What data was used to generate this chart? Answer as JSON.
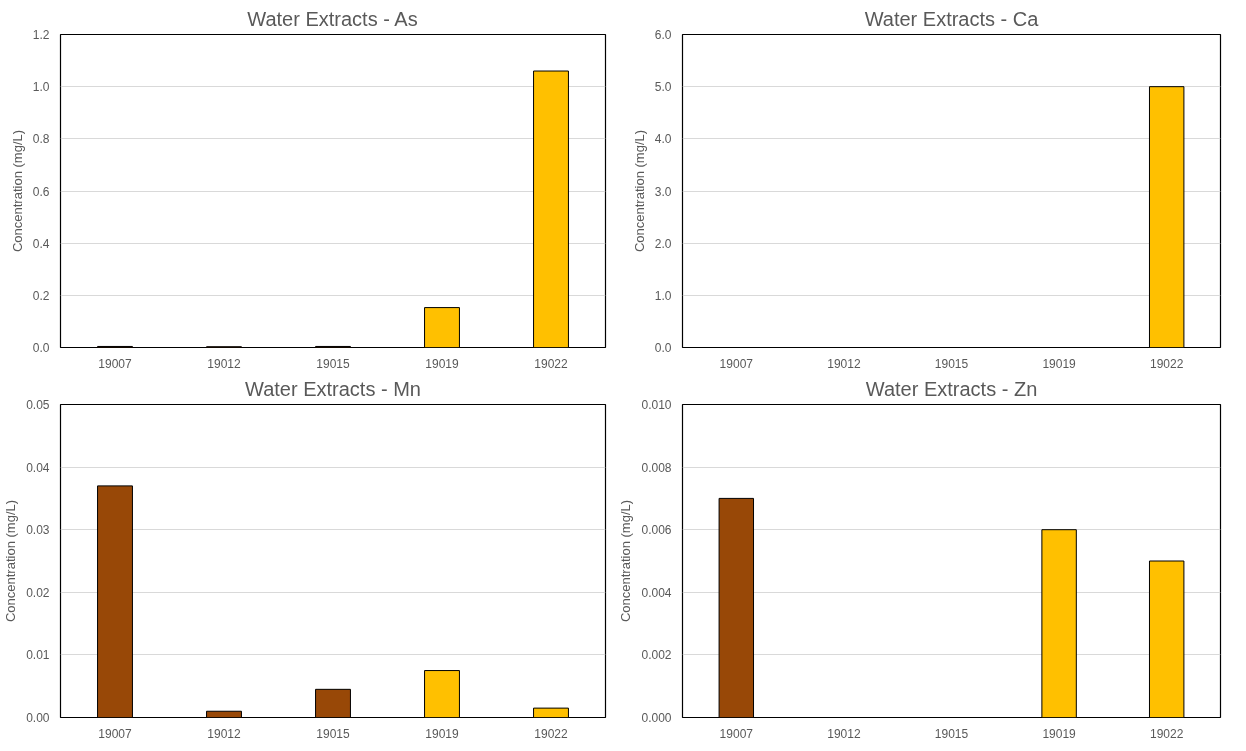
{
  "chart_data": [
    {
      "type": "bar",
      "title": "Water Extracts - As",
      "ylabel": "Concentration (mg/L)",
      "categories": [
        "19007",
        "19012",
        "19015",
        "19019",
        "19022"
      ],
      "values": [
        0.004,
        0.003,
        0.004,
        0.153,
        1.06
      ],
      "colors": [
        "#984807",
        "#984807",
        "#984807",
        "#ffc000",
        "#ffc000"
      ],
      "ylim": [
        0,
        1.2
      ],
      "yticks": [
        {
          "value": 0,
          "label": "0.0"
        },
        0.2,
        0.4,
        0.6,
        0.8,
        {
          "value": 1,
          "label": "1.0"
        },
        1.2
      ],
      "grid": "y"
    },
    {
      "type": "bar",
      "title": "Water Extracts - Ca",
      "ylabel": "Concentration (mg/L)",
      "categories": [
        "19007",
        "19012",
        "19015",
        "19019",
        "19022"
      ],
      "values": [
        null,
        null,
        null,
        null,
        5.0
      ],
      "colors": [
        "#984807",
        "#984807",
        "#984807",
        "#ffc000",
        "#ffc000"
      ],
      "ylim": [
        0,
        6
      ],
      "yticks": [
        {
          "value": 0,
          "label": "0.0"
        },
        {
          "value": 1,
          "label": "1.0"
        },
        {
          "value": 2,
          "label": "2.0"
        },
        {
          "value": 3,
          "label": "3.0"
        },
        {
          "value": 4,
          "label": "4.0"
        },
        {
          "value": 5,
          "label": "5.0"
        },
        {
          "value": 6,
          "label": "6.0"
        }
      ],
      "grid": "y"
    },
    {
      "type": "bar",
      "title": "Water Extracts - Mn",
      "ylabel": "Concentration (mg/L)",
      "categories": [
        "19007",
        "19012",
        "19015",
        "19019",
        "19022"
      ],
      "values": [
        0.037,
        0.001,
        0.0045,
        0.0075,
        0.0015
      ],
      "colors": [
        "#984807",
        "#984807",
        "#984807",
        "#ffc000",
        "#ffc000"
      ],
      "ylim": [
        0,
        0.05
      ],
      "yticks": [
        {
          "value": 0,
          "label": "0.00"
        },
        0.01,
        0.02,
        0.03,
        0.04,
        0.05
      ],
      "grid": "y"
    },
    {
      "type": "bar",
      "title": "Water Extracts - Zn",
      "ylabel": "Concentration (mg/L)",
      "categories": [
        "19007",
        "19012",
        "19015",
        "19019",
        "19022"
      ],
      "values": [
        0.007,
        null,
        null,
        0.006,
        0.005
      ],
      "colors": [
        "#984807",
        "#984807",
        "#984807",
        "#ffc000",
        "#ffc000"
      ],
      "ylim": [
        0,
        0.01
      ],
      "yticks": [
        {
          "value": 0,
          "label": "0.000"
        },
        {
          "value": 0.002,
          "label": "0.002"
        },
        {
          "value": 0.004,
          "label": "0.004"
        },
        {
          "value": 0.006,
          "label": "0.006"
        },
        {
          "value": 0.008,
          "label": "0.008"
        },
        {
          "value": 0.01,
          "label": "0.010"
        }
      ],
      "grid": "y"
    }
  ]
}
